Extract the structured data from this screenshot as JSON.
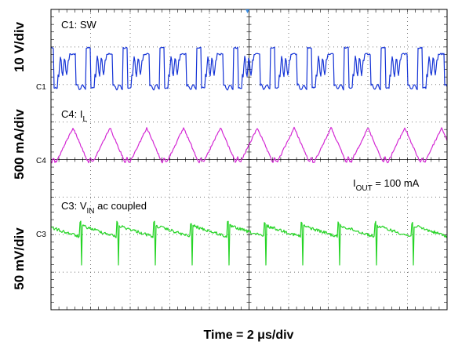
{
  "chart_data": {
    "type": "line",
    "title": "",
    "xlabel": "Time = 2 μs/div",
    "x_scale_per_div": "2 μs/div",
    "grid": {
      "horizontal_divisions": 8,
      "vertical_divisions": 10,
      "major_lines": "dotted",
      "center_lines": "solid"
    },
    "colors": {
      "C1": "#1433d6",
      "C4": "#d42ad4",
      "C3": "#25d425"
    },
    "y_labels": [
      "10 V/div",
      "500 mA/div",
      "50 mV/div"
    ],
    "channel_markers": [
      "C1",
      "C4",
      "C3"
    ],
    "channels": [
      {
        "id": "C1",
        "name_main": "C1: SW",
        "name_sub": "",
        "name_suffix": "",
        "scale": "10 V/div",
        "shape": "switch-node ringing pulses",
        "color": "#1433d6"
      },
      {
        "id": "C4",
        "name_main": "C4: I",
        "name_sub": "L",
        "name_suffix": "",
        "scale": "500 mA/div",
        "shape": "triangular inductor current",
        "color": "#d42ad4"
      },
      {
        "id": "C3",
        "name_main": "C3: V",
        "name_sub": "IN",
        "name_suffix": "  ac coupled",
        "scale": "50 mV/div",
        "shape": "input ripple with spikes",
        "color": "#25d425"
      }
    ],
    "annotation": {
      "main": "I",
      "sub": "OUT",
      "suffix": " = 100 mA"
    }
  }
}
